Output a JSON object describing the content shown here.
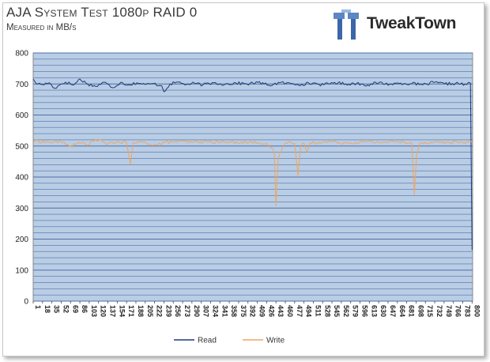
{
  "header": {
    "title": "AJA System Test 1080p RAID 0",
    "subtitle": "Measured in MB/s",
    "brand": "TweakTown"
  },
  "colors": {
    "plot_bg": "#b9cde5",
    "grid": "#4f6fa8",
    "read": "#1f3c78",
    "write": "#f2a55a"
  },
  "chart_data": {
    "type": "line",
    "title": "AJA System Test 1080p RAID 0",
    "subtitle": "Measured in MB/s",
    "xlabel": "",
    "ylabel": "",
    "ylim": [
      0,
      800
    ],
    "yticks": [
      0,
      100,
      200,
      300,
      400,
      500,
      600,
      700,
      800
    ],
    "xlim": [
      1,
      801
    ],
    "xtick_labels": [
      "1",
      "18",
      "35",
      "52",
      "69",
      "86",
      "103",
      "120",
      "137",
      "154",
      "171",
      "188",
      "205",
      "222",
      "239",
      "256",
      "273",
      "290",
      "307",
      "324",
      "341",
      "358",
      "375",
      "392",
      "409",
      "426",
      "443",
      "460",
      "477",
      "494",
      "511",
      "528",
      "545",
      "562",
      "579",
      "596",
      "613",
      "630",
      "647",
      "664",
      "681",
      "698",
      "715",
      "732",
      "749",
      "766",
      "783",
      "800"
    ],
    "grid": true,
    "legend_position": "bottom",
    "series": [
      {
        "name": "Read",
        "baseline": 703,
        "points": [
          [
            1,
            716
          ],
          [
            5,
            705
          ],
          [
            10,
            700
          ],
          [
            18,
            698
          ],
          [
            30,
            704
          ],
          [
            40,
            686
          ],
          [
            52,
            700
          ],
          [
            60,
            706
          ],
          [
            75,
            697
          ],
          [
            86,
            716
          ],
          [
            100,
            700
          ],
          [
            115,
            692
          ],
          [
            130,
            706
          ],
          [
            145,
            688
          ],
          [
            160,
            705
          ],
          [
            175,
            697
          ],
          [
            190,
            704
          ],
          [
            205,
            698
          ],
          [
            220,
            701
          ],
          [
            235,
            694
          ],
          [
            239,
            675
          ],
          [
            250,
            700
          ],
          [
            265,
            706
          ],
          [
            280,
            698
          ],
          [
            295,
            702
          ],
          [
            310,
            697
          ],
          [
            330,
            704
          ],
          [
            350,
            699
          ],
          [
            370,
            703
          ],
          [
            390,
            700
          ],
          [
            410,
            705
          ],
          [
            430,
            696
          ],
          [
            450,
            704
          ],
          [
            470,
            701
          ],
          [
            490,
            699
          ],
          [
            510,
            703
          ],
          [
            530,
            697
          ],
          [
            550,
            705
          ],
          [
            570,
            700
          ],
          [
            590,
            702
          ],
          [
            610,
            697
          ],
          [
            630,
            704
          ],
          [
            650,
            699
          ],
          [
            670,
            703
          ],
          [
            690,
            701
          ],
          [
            710,
            697
          ],
          [
            730,
            705
          ],
          [
            750,
            700
          ],
          [
            770,
            702
          ],
          [
            790,
            698
          ],
          [
            797,
            703
          ],
          [
            800,
            165
          ]
        ]
      },
      {
        "name": "Write",
        "baseline": 513,
        "points": [
          [
            1,
            517
          ],
          [
            30,
            512
          ],
          [
            52,
            514
          ],
          [
            69,
            500
          ],
          [
            90,
            511
          ],
          [
            103,
            505
          ],
          [
            115,
            522
          ],
          [
            120,
            518
          ],
          [
            137,
            506
          ],
          [
            154,
            513
          ],
          [
            171,
            511
          ],
          [
            178,
            442
          ],
          [
            183,
            510
          ],
          [
            200,
            513
          ],
          [
            225,
            503
          ],
          [
            240,
            511
          ],
          [
            260,
            515
          ],
          [
            290,
            512
          ],
          [
            320,
            514
          ],
          [
            350,
            512
          ],
          [
            380,
            513
          ],
          [
            410,
            511
          ],
          [
            426,
            509
          ],
          [
            440,
            480
          ],
          [
            443,
            307
          ],
          [
            447,
            458
          ],
          [
            452,
            480
          ],
          [
            460,
            510
          ],
          [
            470,
            512
          ],
          [
            477,
            508
          ],
          [
            483,
            405
          ],
          [
            488,
            498
          ],
          [
            494,
            510
          ],
          [
            500,
            480
          ],
          [
            505,
            510
          ],
          [
            520,
            512
          ],
          [
            545,
            514
          ],
          [
            570,
            510
          ],
          [
            600,
            513
          ],
          [
            630,
            512
          ],
          [
            660,
            514
          ],
          [
            690,
            511
          ],
          [
            695,
            345
          ],
          [
            699,
            470
          ],
          [
            705,
            510
          ],
          [
            730,
            513
          ],
          [
            760,
            511
          ],
          [
            790,
            514
          ],
          [
            800,
            512
          ]
        ]
      }
    ]
  }
}
